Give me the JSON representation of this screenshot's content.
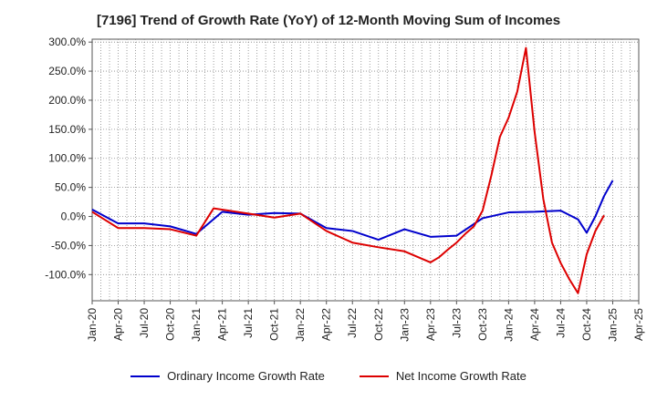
{
  "chart_data": {
    "type": "line",
    "title": "[7196]  Trend of Growth Rate (YoY) of 12-Month Moving Sum of Incomes",
    "x": [
      "Jan-20",
      "Apr-20",
      "Jul-20",
      "Oct-20",
      "Jan-21",
      "Apr-21",
      "Jul-21",
      "Oct-21",
      "Jan-22",
      "Apr-22",
      "Jul-22",
      "Oct-22",
      "Jan-23",
      "Apr-23",
      "Jul-23",
      "Oct-23",
      "Jan-24",
      "Apr-24",
      "Jul-24",
      "Oct-24",
      "Jan-25"
    ],
    "x_ticks": [
      "Jan-20",
      "Apr-20",
      "Jul-20",
      "Oct-20",
      "Jan-21",
      "Apr-21",
      "Jul-21",
      "Oct-21",
      "Jan-22",
      "Apr-22",
      "Jul-22",
      "Oct-22",
      "Jan-23",
      "Apr-23",
      "Jul-23",
      "Oct-23",
      "Jan-24",
      "Apr-24",
      "Jul-24",
      "Oct-24",
      "Jan-25",
      "Apr-25"
    ],
    "y_ticks": [
      "300.0%",
      "250.0%",
      "200.0%",
      "150.0%",
      "100.0%",
      "50.0%",
      "0.0%",
      "-50.0%",
      "-100.0%"
    ],
    "ylim": [
      -145,
      305
    ],
    "series": [
      {
        "name": "Ordinary Income Growth Rate",
        "color": "#0000cc",
        "points": [
          [
            0,
            12
          ],
          [
            3,
            -12
          ],
          [
            6,
            -12
          ],
          [
            9,
            -17
          ],
          [
            12,
            -30
          ],
          [
            15,
            8
          ],
          [
            18,
            3
          ],
          [
            21,
            6
          ],
          [
            24,
            5
          ],
          [
            27,
            -20
          ],
          [
            30,
            -25
          ],
          [
            33,
            -40
          ],
          [
            36,
            -22
          ],
          [
            39,
            -35
          ],
          [
            42,
            -33
          ],
          [
            45,
            -3
          ],
          [
            48,
            7
          ],
          [
            51,
            8
          ],
          [
            54,
            10
          ],
          [
            56,
            -5
          ],
          [
            57,
            -28
          ],
          [
            58,
            0
          ],
          [
            59,
            35
          ],
          [
            60,
            62
          ]
        ]
      },
      {
        "name": "Net Income Growth Rate",
        "color": "#dd0000",
        "points": [
          [
            0,
            8
          ],
          [
            3,
            -20
          ],
          [
            6,
            -20
          ],
          [
            9,
            -22
          ],
          [
            12,
            -33
          ],
          [
            14,
            14
          ],
          [
            18,
            5
          ],
          [
            21,
            -2
          ],
          [
            24,
            5
          ],
          [
            27,
            -25
          ],
          [
            30,
            -45
          ],
          [
            33,
            -53
          ],
          [
            36,
            -60
          ],
          [
            39,
            -79
          ],
          [
            40,
            -70
          ],
          [
            41,
            -57
          ],
          [
            42,
            -45
          ],
          [
            43,
            -30
          ],
          [
            44,
            -17
          ],
          [
            45,
            10
          ],
          [
            46,
            70
          ],
          [
            47,
            137
          ],
          [
            48,
            170
          ],
          [
            49,
            215
          ],
          [
            50,
            290
          ],
          [
            51,
            145
          ],
          [
            52,
            30
          ],
          [
            53,
            -45
          ],
          [
            54,
            -80
          ],
          [
            55,
            -108
          ],
          [
            56,
            -132
          ],
          [
            57,
            -65
          ],
          [
            58,
            -25
          ],
          [
            59,
            2
          ]
        ]
      }
    ],
    "grid": true,
    "legend_position": "bottom"
  },
  "legend": {
    "ordinary": "Ordinary Income Growth Rate",
    "net": "Net Income Growth Rate"
  },
  "colors": {
    "ordinary": "#0000cc",
    "net": "#dd0000"
  }
}
